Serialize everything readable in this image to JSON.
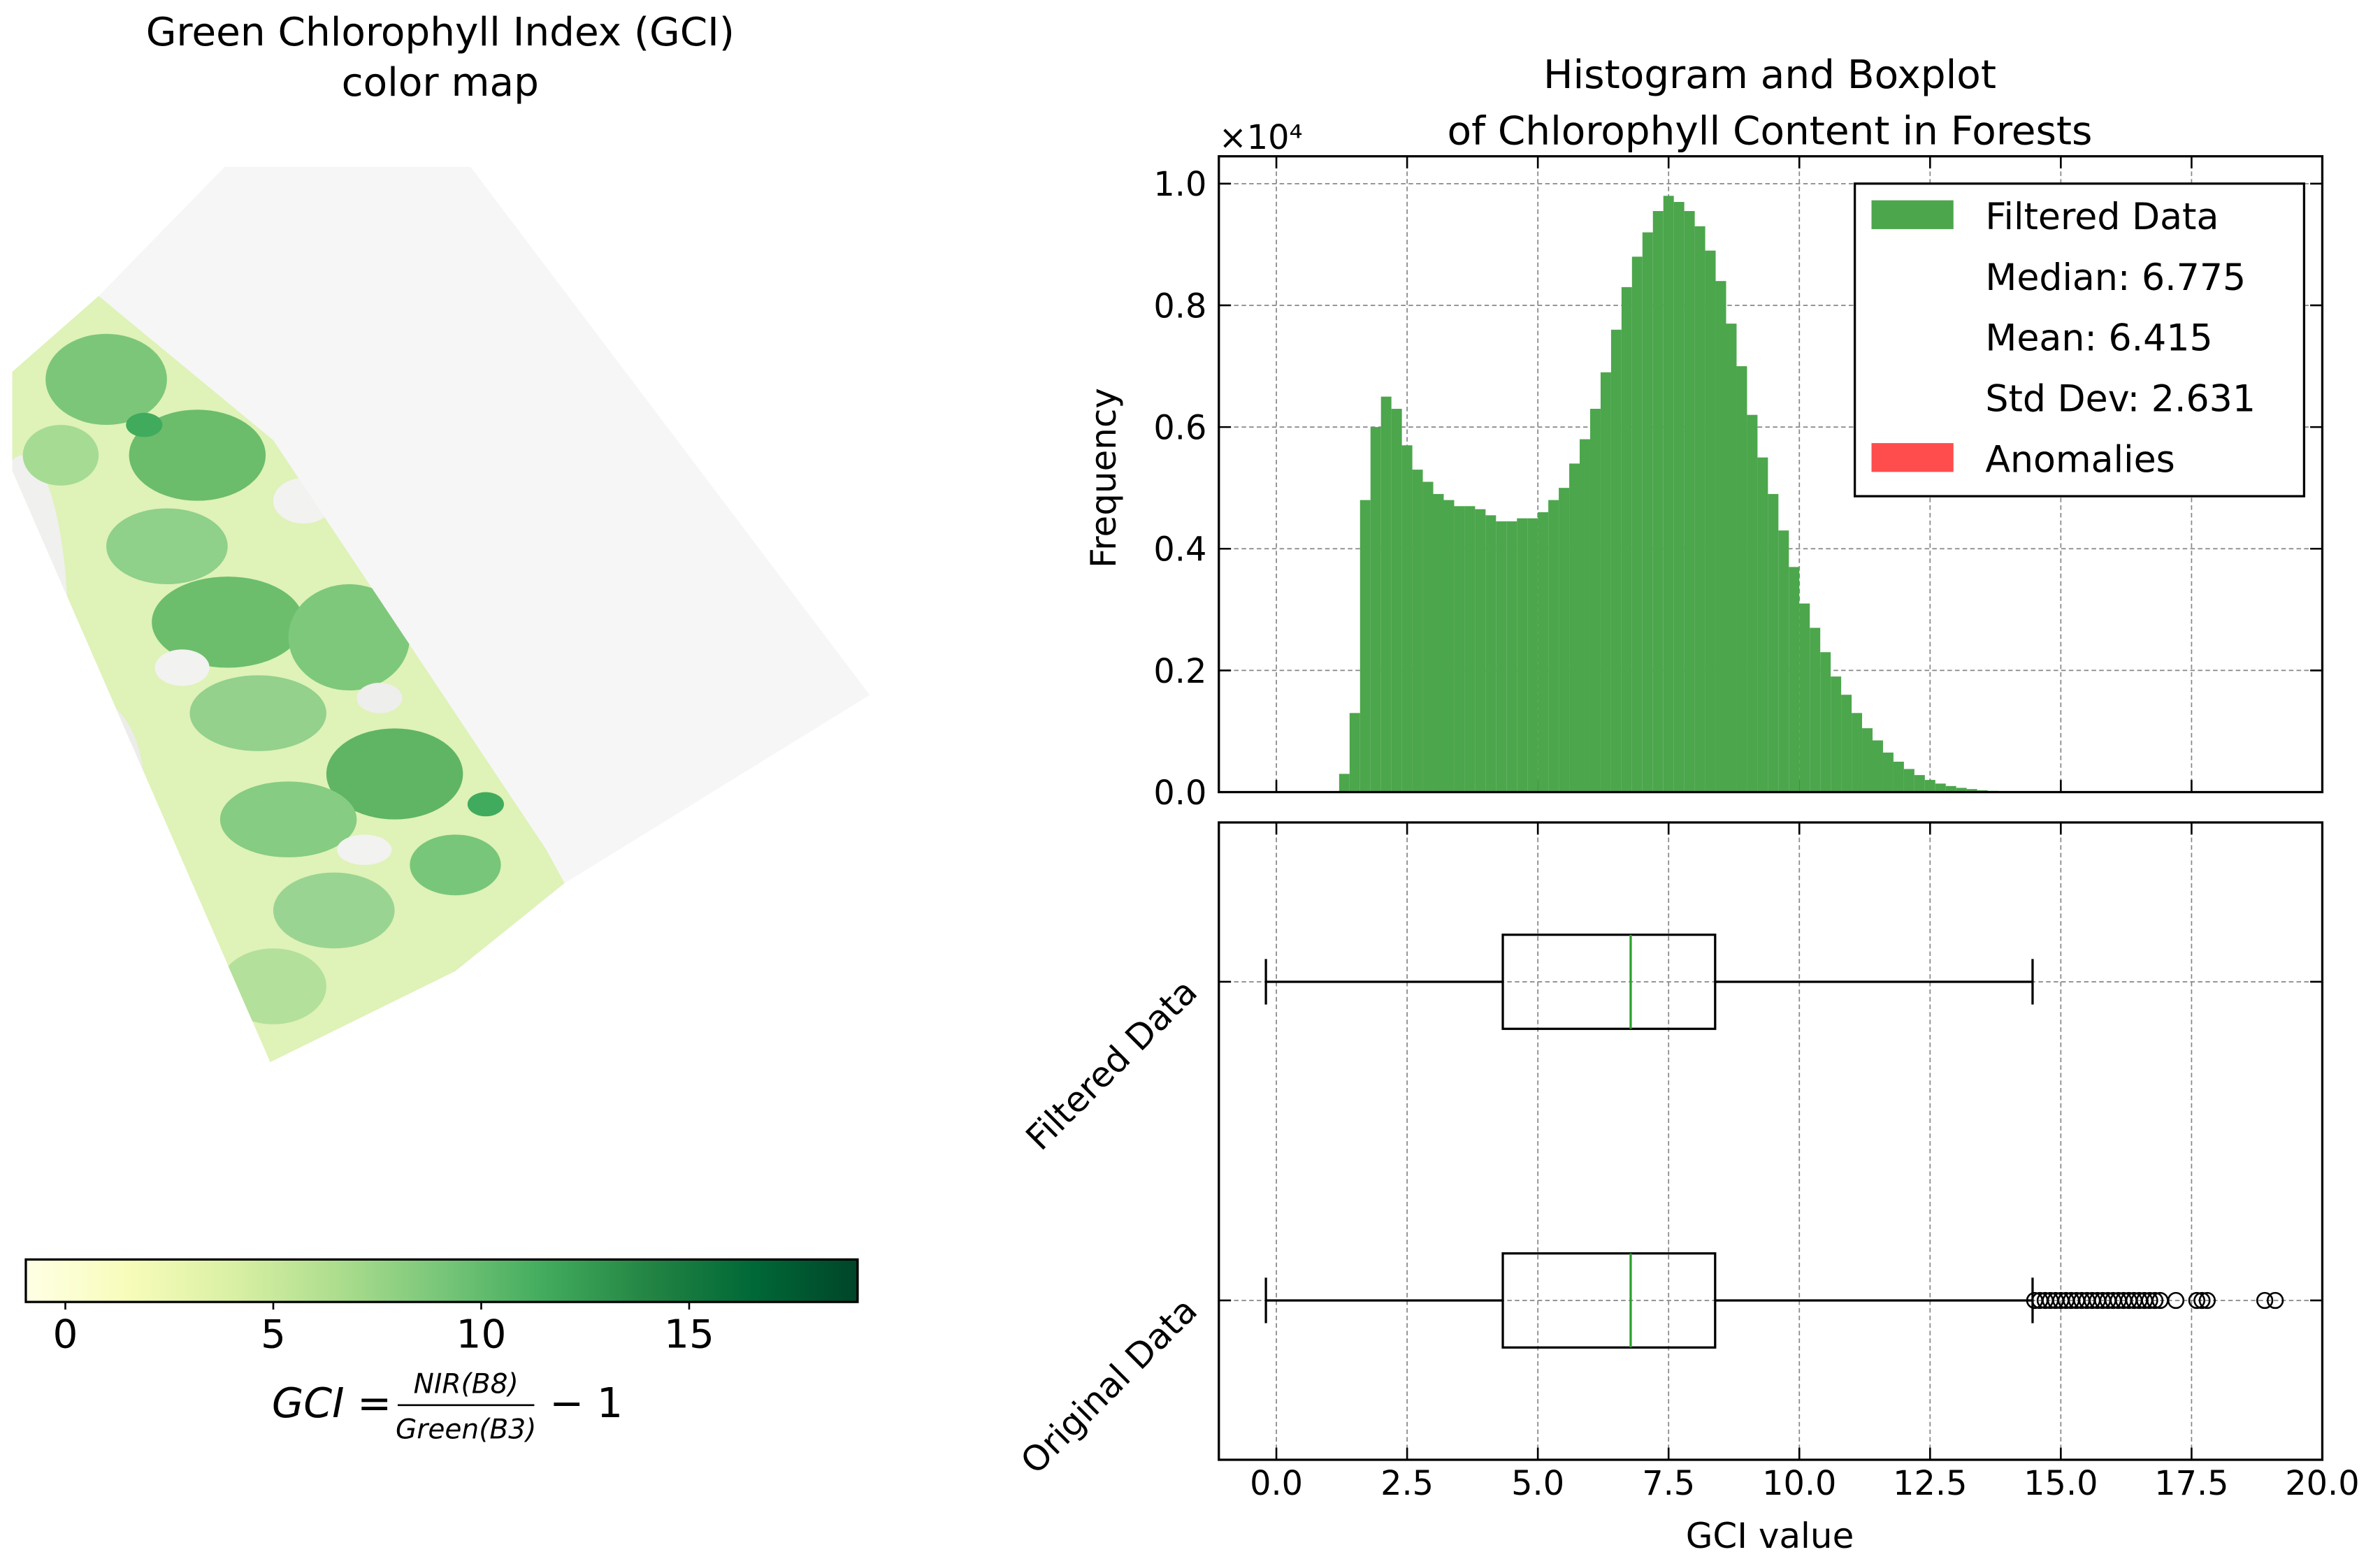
{
  "chart_data": [
    {
      "type": "colormap",
      "title": [
        "Green Chlorophyll Index (GCI)",
        "color map"
      ],
      "colorbar": {
        "colors": [
          "#ffffe5",
          "#f7fcb9",
          "#d9f0a3",
          "#addd8e",
          "#78c679",
          "#41ab5d",
          "#238443",
          "#006837",
          "#004529"
        ],
        "xlim": [
          -0.95,
          19.05
        ],
        "xticks": [
          0,
          5,
          10,
          15
        ]
      },
      "formula": {
        "lhs": "GCI =",
        "numerator": "NIR(B8)",
        "denominator": "Green(B3)",
        "rhs": "− 1"
      }
    },
    {
      "type": "histogram",
      "title": [
        "Histogram and Boxplot",
        "of Chlorophyll Content in Forests"
      ],
      "ylabel": "Frequency",
      "y_offset": "×10⁴",
      "bins": [
        1.2,
        1.4,
        1.6,
        1.8,
        2.0,
        2.2,
        2.4,
        2.6,
        2.8,
        3.0,
        3.2,
        3.4,
        3.6,
        3.8,
        4.0,
        4.2,
        4.4,
        4.6,
        4.8,
        5.0,
        5.2,
        5.4,
        5.6,
        5.8,
        6.0,
        6.2,
        6.4,
        6.6,
        6.8,
        7.0,
        7.2,
        7.4,
        7.6,
        7.8,
        8.0,
        8.2,
        8.4,
        8.6,
        8.8,
        9.0,
        9.2,
        9.4,
        9.6,
        9.8,
        10.0,
        10.2,
        10.4,
        10.6,
        10.8,
        11.0,
        11.2,
        11.4,
        11.6,
        11.8,
        12.0,
        12.2,
        12.4,
        12.6,
        12.8,
        13.0,
        13.2,
        13.4,
        13.6,
        13.8,
        14.0,
        14.2,
        14.4
      ],
      "series": [
        {
          "name": "Filtered Data",
          "color": "#4ca64c",
          "values": [
            300,
            1300,
            4800,
            6000,
            6500,
            6300,
            5700,
            5300,
            5100,
            4900,
            4800,
            4700,
            4700,
            4650,
            4550,
            4450,
            4450,
            4500,
            4500,
            4600,
            4800,
            5000,
            5400,
            5800,
            6300,
            6900,
            7600,
            8300,
            8800,
            9200,
            9550,
            9800,
            9700,
            9550,
            9300,
            8900,
            8400,
            7700,
            7000,
            6200,
            5500,
            4900,
            4300,
            3700,
            3100,
            2700,
            2300,
            1900,
            1600,
            1300,
            1050,
            850,
            650,
            500,
            380,
            280,
            200,
            140,
            100,
            70,
            50,
            30,
            20,
            10,
            6,
            3
          ]
        }
      ],
      "legend_texts": [
        "Median: 6.775",
        "Mean: 6.415",
        "Std Dev: 2.631"
      ],
      "anomalies": {
        "name": "Anomalies",
        "color": "#ff4d4d"
      },
      "legend": "upper right",
      "xlim": [
        -1.1,
        20.0
      ],
      "xticks": [
        0,
        2.5,
        5,
        7.5,
        10,
        12.5,
        15,
        17.5,
        20
      ],
      "ylim": [
        0,
        10450
      ],
      "yticks": [
        {
          "value": 0,
          "label": "0.0"
        },
        {
          "value": 2000,
          "label": "0.2"
        },
        {
          "value": 4000,
          "label": "0.4"
        },
        {
          "value": 6000,
          "label": "0.6"
        },
        {
          "value": 8000,
          "label": "0.8"
        },
        {
          "value": 10000,
          "label": "1.0"
        }
      ],
      "grid": true
    },
    {
      "type": "boxplot",
      "categories": [
        "Filtered Data",
        "Original Data"
      ],
      "boxes": [
        {
          "whislo": -0.2,
          "q1": 4.33,
          "med": 6.775,
          "q3": 8.39,
          "whishi": 14.46,
          "fliers": []
        },
        {
          "whislo": -0.2,
          "q1": 4.33,
          "med": 6.775,
          "q3": 8.39,
          "whishi": 14.46,
          "fliers": [
            14.5,
            14.6,
            14.7,
            14.8,
            14.9,
            15.0,
            15.1,
            15.2,
            15.3,
            15.4,
            15.5,
            15.6,
            15.7,
            15.8,
            15.9,
            16.0,
            16.1,
            16.2,
            16.3,
            16.4,
            16.5,
            16.6,
            16.7,
            16.8,
            16.9,
            17.2,
            17.6,
            17.7,
            17.8,
            18.9,
            19.1
          ]
        }
      ],
      "median_color": "#2ca02c",
      "xlabel": "GCI value",
      "xlim": [
        -1.1,
        20.0
      ],
      "xticks": [
        {
          "value": 0,
          "label": "0.0"
        },
        2.5,
        {
          "value": 5,
          "label": "5.0"
        },
        7.5,
        {
          "value": 10,
          "label": "10.0"
        },
        12.5,
        {
          "value": 15,
          "label": "15.0"
        },
        17.5,
        {
          "value": 20,
          "label": "20.0"
        }
      ],
      "grid": true
    }
  ]
}
